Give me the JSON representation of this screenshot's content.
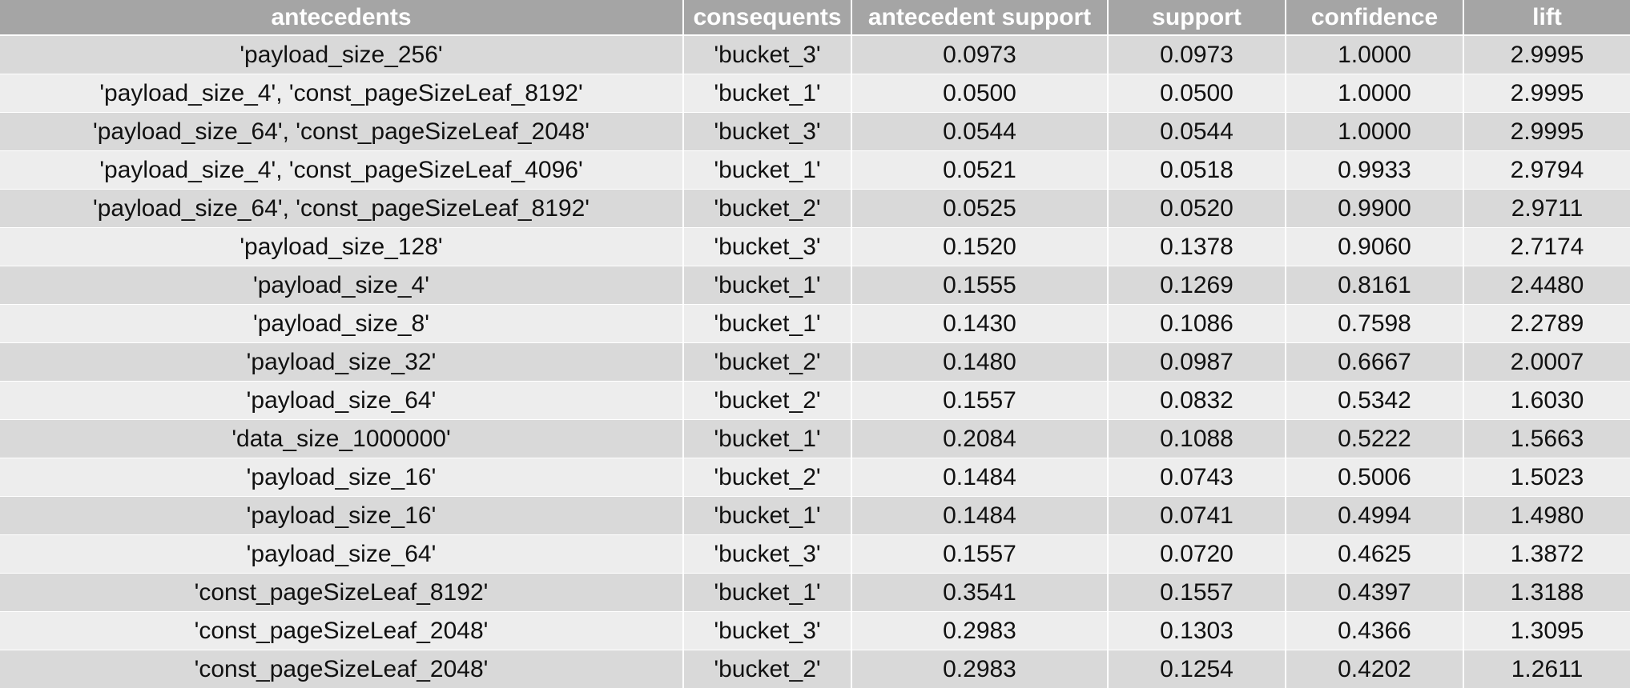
{
  "table": {
    "headers": [
      "antecedents",
      "consequents",
      "antecedent support",
      "support",
      "confidence",
      "lift"
    ],
    "rows": [
      [
        "'payload_size_256'",
        "'bucket_3'",
        "0.0973",
        "0.0973",
        "1.0000",
        "2.9995"
      ],
      [
        "'payload_size_4', 'const_pageSizeLeaf_8192'",
        "'bucket_1'",
        "0.0500",
        "0.0500",
        "1.0000",
        "2.9995"
      ],
      [
        "'payload_size_64', 'const_pageSizeLeaf_2048'",
        "'bucket_3'",
        "0.0544",
        "0.0544",
        "1.0000",
        "2.9995"
      ],
      [
        "'payload_size_4', 'const_pageSizeLeaf_4096'",
        "'bucket_1'",
        "0.0521",
        "0.0518",
        "0.9933",
        "2.9794"
      ],
      [
        "'payload_size_64', 'const_pageSizeLeaf_8192'",
        "'bucket_2'",
        "0.0525",
        "0.0520",
        "0.9900",
        "2.9711"
      ],
      [
        "'payload_size_128'",
        "'bucket_3'",
        "0.1520",
        "0.1378",
        "0.9060",
        "2.7174"
      ],
      [
        "'payload_size_4'",
        "'bucket_1'",
        "0.1555",
        "0.1269",
        "0.8161",
        "2.4480"
      ],
      [
        "'payload_size_8'",
        "'bucket_1'",
        "0.1430",
        "0.1086",
        "0.7598",
        "2.2789"
      ],
      [
        "'payload_size_32'",
        "'bucket_2'",
        "0.1480",
        "0.0987",
        "0.6667",
        "2.0007"
      ],
      [
        "'payload_size_64'",
        "'bucket_2'",
        "0.1557",
        "0.0832",
        "0.5342",
        "1.6030"
      ],
      [
        "'data_size_1000000'",
        "'bucket_1'",
        "0.2084",
        "0.1088",
        "0.5222",
        "1.5663"
      ],
      [
        "'payload_size_16'",
        "'bucket_2'",
        "0.1484",
        "0.0743",
        "0.5006",
        "1.5023"
      ],
      [
        "'payload_size_16'",
        "'bucket_1'",
        "0.1484",
        "0.0741",
        "0.4994",
        "1.4980"
      ],
      [
        "'payload_size_64'",
        "'bucket_3'",
        "0.1557",
        "0.0720",
        "0.4625",
        "1.3872"
      ],
      [
        "'const_pageSizeLeaf_8192'",
        "'bucket_1'",
        "0.3541",
        "0.1557",
        "0.4397",
        "1.3188"
      ],
      [
        "'const_pageSizeLeaf_2048'",
        "'bucket_3'",
        "0.2983",
        "0.1303",
        "0.4366",
        "1.3095"
      ],
      [
        "'const_pageSizeLeaf_2048'",
        "'bucket_2'",
        "0.2983",
        "0.1254",
        "0.4202",
        "1.2611"
      ]
    ]
  },
  "colors": {
    "header_bg": "#a5a5a5",
    "header_text": "#ffffff",
    "row_odd_bg": "#d9d9d9",
    "row_even_bg": "#ededed"
  }
}
